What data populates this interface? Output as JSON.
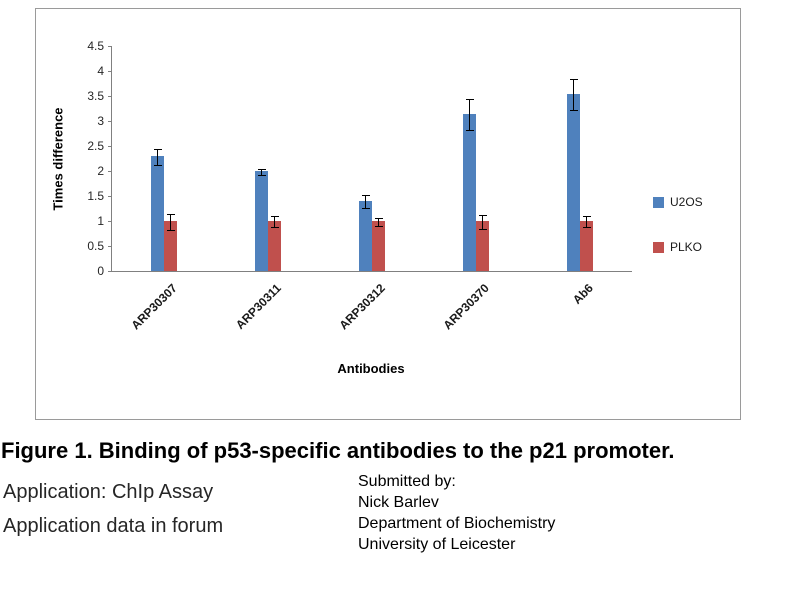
{
  "figure": {
    "caption": "Figure 1. Binding of p53-specific antibodies to the p21 promoter.",
    "application_line1": "Application: ChIp Assay",
    "application_line2": "Application data in forum",
    "submitted_by": [
      "Submitted by:",
      "Nick Barlev",
      "Department of Biochemistry",
      "University of Leicester"
    ]
  },
  "chart_data": {
    "type": "bar",
    "title": "",
    "xlabel": "Antibodies",
    "ylabel": "Times difference",
    "categories": [
      "ARP30307",
      "ARP30311",
      "ARP30312",
      "ARP30370",
      "Ab6"
    ],
    "series": [
      {
        "name": "U2OS",
        "color": "#4F81BD",
        "values": [
          2.3,
          2.0,
          1.4,
          3.15,
          3.55
        ],
        "errors": [
          0.15,
          0.05,
          0.12,
          0.3,
          0.3
        ]
      },
      {
        "name": "PLKO",
        "color": "#C0504D",
        "values": [
          1.0,
          1.0,
          1.0,
          1.0,
          1.0
        ],
        "errors": [
          0.15,
          0.1,
          0.07,
          0.13,
          0.1
        ]
      }
    ],
    "ylim": [
      0,
      4.5
    ],
    "yticks": [
      "0",
      "0.5",
      "1",
      "1.5",
      "2",
      "2.5",
      "3",
      "3.5",
      "4",
      "4.5"
    ],
    "legend_position": "right",
    "grid": false,
    "error_bars": true
  }
}
